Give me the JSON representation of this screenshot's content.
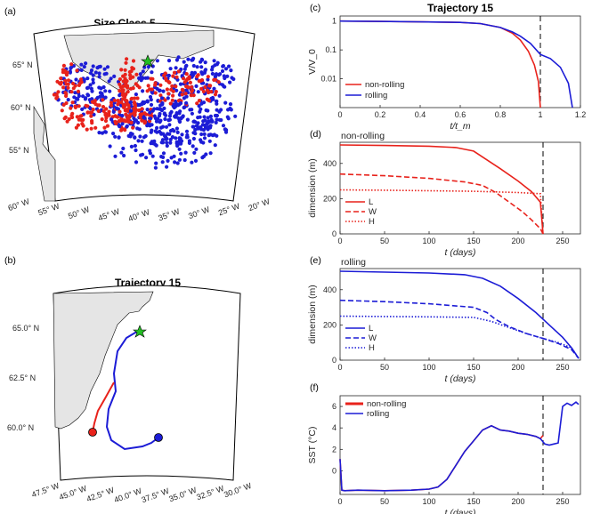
{
  "colors": {
    "red": "#e8221b",
    "blue": "#1c1cd6",
    "purple": "#6b2aa0",
    "land": "#e5e5e5",
    "green": "#22c022"
  },
  "map_a": {
    "panel": "(a)",
    "title": "Size Class 5",
    "lat_labels": [
      "65° N",
      "60° N",
      "55° N"
    ],
    "lon_labels": [
      "60° W",
      "55° W",
      "50° W",
      "45° W",
      "40° W",
      "35° W",
      "30° W",
      "25° W",
      "20° W"
    ]
  },
  "map_b": {
    "panel": "(b)",
    "title": "Trajectory 15",
    "lat_labels": [
      "65.0° N",
      "62.5° N",
      "60.0° N"
    ],
    "lon_labels": [
      "47.5° W",
      "45.0° W",
      "42.5° W",
      "40.0° W",
      "37.5° W",
      "35.0° W",
      "32.5° W",
      "30.0° W"
    ]
  },
  "chart_data": [
    {
      "panel": "(c)",
      "type": "line",
      "title": "Trajectory 15",
      "xlabel": "t/t_m",
      "ylabel": "V/V_0",
      "yscale": "log",
      "xlim": [
        0,
        1.2
      ],
      "ylim": [
        0.001,
        1.5
      ],
      "xticks": [
        "0",
        "0.2",
        "0.4",
        "0.6",
        "0.8",
        "1",
        "1.2"
      ],
      "yticks": [
        "1",
        "0.1",
        "0.01"
      ],
      "vline": 1.0,
      "legend_position": "bottom-left",
      "series": [
        {
          "name": "non-rolling",
          "color": "red",
          "x": [
            0,
            0.2,
            0.4,
            0.6,
            0.7,
            0.8,
            0.86,
            0.9,
            0.94,
            0.97,
            0.99,
            1.0
          ],
          "y": [
            1,
            0.97,
            0.94,
            0.9,
            0.82,
            0.6,
            0.38,
            0.22,
            0.09,
            0.03,
            0.008,
            0.001
          ]
        },
        {
          "name": "rolling",
          "color": "blue",
          "x": [
            0,
            0.2,
            0.4,
            0.6,
            0.7,
            0.8,
            0.86,
            0.9,
            0.95,
            1.0,
            1.05,
            1.1,
            1.14,
            1.16
          ],
          "y": [
            1,
            0.97,
            0.94,
            0.9,
            0.82,
            0.6,
            0.42,
            0.3,
            0.17,
            0.07,
            0.05,
            0.025,
            0.007,
            0.001
          ]
        }
      ]
    },
    {
      "panel": "(d)",
      "type": "line",
      "title": "non-rolling",
      "xlabel": "t (days)",
      "ylabel": "dimension (m)",
      "xlim": [
        0,
        270
      ],
      "ylim": [
        0,
        520
      ],
      "xticks": [
        "0",
        "50",
        "100",
        "150",
        "200",
        "250"
      ],
      "yticks": [
        "0",
        "200",
        "400"
      ],
      "vline": 228,
      "legend_position": "bottom-left",
      "series": [
        {
          "name": "L",
          "dash": "solid",
          "x": [
            0,
            50,
            100,
            130,
            150,
            165,
            180,
            200,
            215,
            225,
            228
          ],
          "y": [
            505,
            502,
            498,
            490,
            470,
            420,
            370,
            300,
            240,
            180,
            0
          ]
        },
        {
          "name": "W",
          "dash": "dashed",
          "x": [
            0,
            50,
            100,
            140,
            160,
            175,
            190,
            205,
            215,
            225,
            228
          ],
          "y": [
            340,
            330,
            315,
            295,
            275,
            235,
            180,
            125,
            80,
            30,
            0
          ]
        },
        {
          "name": "H",
          "dash": "dotted",
          "x": [
            0,
            50,
            100,
            150,
            200,
            225,
            228
          ],
          "y": [
            250,
            248,
            245,
            242,
            235,
            228,
            0
          ]
        }
      ]
    },
    {
      "panel": "(e)",
      "type": "line",
      "title": "rolling",
      "xlabel": "t (days)",
      "ylabel": "dimension (m)",
      "xlim": [
        0,
        270
      ],
      "ylim": [
        0,
        520
      ],
      "xticks": [
        "0",
        "50",
        "100",
        "150",
        "200",
        "250"
      ],
      "yticks": [
        "0",
        "200",
        "400"
      ],
      "vline": 228,
      "legend_position": "bottom-left",
      "series": [
        {
          "name": "L",
          "dash": "solid",
          "x": [
            0,
            50,
            100,
            140,
            160,
            180,
            200,
            220,
            235,
            250,
            260,
            268
          ],
          "y": [
            505,
            500,
            495,
            485,
            465,
            420,
            350,
            270,
            200,
            130,
            70,
            10
          ]
        },
        {
          "name": "W",
          "dash": "dashed",
          "x": [
            0,
            50,
            100,
            150,
            165,
            175,
            190,
            210,
            230,
            245,
            260,
            268
          ],
          "y": [
            340,
            332,
            320,
            300,
            270,
            230,
            190,
            150,
            120,
            95,
            60,
            10
          ]
        },
        {
          "name": "H",
          "dash": "dotted",
          "x": [
            0,
            50,
            100,
            150,
            170,
            190,
            210,
            230,
            245,
            260,
            268
          ],
          "y": [
            250,
            248,
            246,
            243,
            220,
            185,
            150,
            120,
            100,
            70,
            10
          ]
        }
      ]
    },
    {
      "panel": "(f)",
      "type": "line",
      "title": "",
      "xlabel": "t (days)",
      "ylabel": "SST (°C)",
      "xlim": [
        0,
        270
      ],
      "ylim": [
        -2.2,
        7
      ],
      "xticks": [
        "0",
        "50",
        "100",
        "150",
        "200",
        "250"
      ],
      "yticks": [
        "0",
        "2",
        "4",
        "6"
      ],
      "vline": 228,
      "legend_position": "top-left",
      "series": [
        {
          "name": "non-rolling",
          "color": "red",
          "x": [
            0,
            2,
            5,
            20,
            50,
            80,
            100,
            110,
            120,
            130,
            140,
            150,
            160,
            170,
            180,
            190,
            200,
            210,
            220,
            225,
            228
          ],
          "y": [
            1.1,
            -1.8,
            -1.85,
            -1.8,
            -1.85,
            -1.8,
            -1.7,
            -1.5,
            -0.8,
            0.5,
            1.8,
            2.8,
            3.8,
            4.2,
            3.8,
            3.7,
            3.5,
            3.4,
            3.2,
            3.0,
            3.3
          ]
        },
        {
          "name": "rolling",
          "color": "blue",
          "x": [
            0,
            2,
            5,
            20,
            50,
            80,
            100,
            110,
            120,
            130,
            140,
            150,
            160,
            170,
            180,
            190,
            200,
            210,
            220,
            225,
            230,
            235,
            240,
            245,
            250,
            255,
            260,
            265,
            268
          ],
          "y": [
            1.1,
            -1.8,
            -1.85,
            -1.8,
            -1.85,
            -1.8,
            -1.7,
            -1.5,
            -0.8,
            0.5,
            1.8,
            2.8,
            3.8,
            4.2,
            3.8,
            3.7,
            3.5,
            3.4,
            3.2,
            3.0,
            2.5,
            2.4,
            2.5,
            2.6,
            6.0,
            6.3,
            6.1,
            6.4,
            6.2
          ]
        }
      ]
    }
  ]
}
